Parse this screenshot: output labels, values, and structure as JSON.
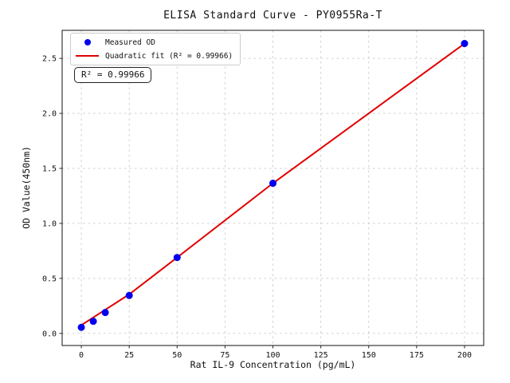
{
  "chart_data": {
    "type": "scatter",
    "title": "ELISA Standard Curve - PY0955Ra-T",
    "xlabel": "Rat IL-9 Concentration (pg/mL)",
    "ylabel": "OD Value(450nm)",
    "xlim": [
      -10,
      210
    ],
    "ylim": [
      -0.11,
      2.755
    ],
    "x_ticks": [
      0,
      25,
      50,
      75,
      100,
      125,
      150,
      175,
      200
    ],
    "x_tick_labels": [
      "0",
      "25",
      "50",
      "75",
      "100",
      "125",
      "150",
      "175",
      "200"
    ],
    "y_ticks": [
      0.0,
      0.5,
      1.0,
      1.5,
      2.0,
      2.5
    ],
    "y_tick_labels": [
      "0.0",
      "0.5",
      "1.0",
      "1.5",
      "2.0",
      "2.5"
    ],
    "grid": true,
    "grid_style": "dashed",
    "legend_position": "upper left",
    "series": [
      {
        "name": "Measured OD",
        "kind": "scatter",
        "color": "#0000ee",
        "x": [
          0,
          6.25,
          12.5,
          25,
          50,
          100,
          200
        ],
        "y": [
          0.055,
          0.11,
          0.19,
          0.345,
          0.69,
          1.365,
          2.635
        ]
      },
      {
        "name": "Quadratic fit (R² = 0.99966)",
        "kind": "line",
        "color": "#e10000",
        "x": [
          0,
          6.25,
          12.5,
          25,
          50,
          100,
          200
        ],
        "y": [
          0.075,
          0.145,
          0.215,
          0.355,
          0.69,
          1.365,
          2.635
        ]
      }
    ],
    "annotation": "R² = 0.99966",
    "r_squared": 0.99966
  },
  "colors": {
    "background": "#ffffff",
    "grid": "#c9c9c9",
    "spine": "#262626",
    "tick_text": "#111111",
    "point": "#0000ee",
    "fit_line": "#e10000"
  }
}
